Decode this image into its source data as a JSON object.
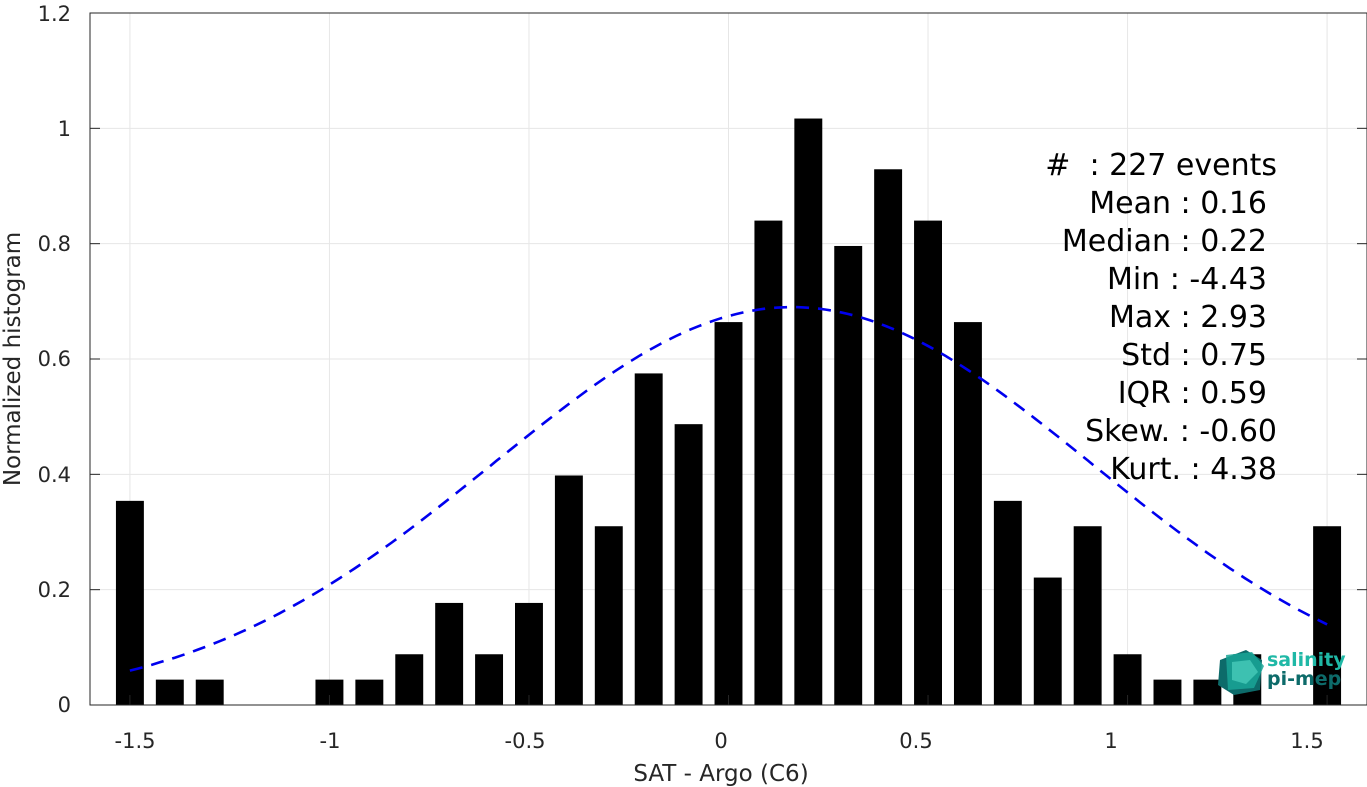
{
  "chart_data": {
    "type": "bar",
    "xlabel": "SAT - Argo (C6)",
    "ylabel": "Normalized histogram",
    "xlim": [
      -1.6,
      1.6
    ],
    "ylim": [
      0,
      1.2
    ],
    "grid": true,
    "x_ticks": [
      "-1.5",
      "-1",
      "-0.5",
      "0",
      "0.5",
      "1",
      "1.5"
    ],
    "x_tick_values": [
      -1.5,
      -1,
      -0.5,
      0,
      0.5,
      1,
      1.5
    ],
    "y_ticks": [
      "0",
      "0.2",
      "0.4",
      "0.6",
      "0.8",
      "1",
      "1.2"
    ],
    "y_tick_values": [
      0,
      0.2,
      0.4,
      0.6,
      0.8,
      1,
      1.2
    ],
    "bar_color": "#000000",
    "bar_width": 0.07,
    "series": [
      {
        "x": [
          -1.5,
          -1.4,
          -1.3,
          -1.2,
          -1.1,
          -1.0,
          -0.9,
          -0.8,
          -0.7,
          -0.6,
          -0.5,
          -0.4,
          -0.3,
          -0.2,
          -0.1,
          0.0,
          0.1,
          0.2,
          0.3,
          0.4,
          0.5,
          0.6,
          0.7,
          0.8,
          0.9,
          1.0,
          1.1,
          1.2,
          1.3,
          1.5
        ],
        "values": [
          0.354,
          0.044,
          0.044,
          0,
          0,
          0.044,
          0.044,
          0.088,
          0.177,
          0.088,
          0.177,
          0.398,
          0.31,
          0.575,
          0.487,
          0.664,
          0.84,
          1.017,
          0.796,
          0.929,
          0.84,
          0.664,
          0.354,
          0.221,
          0.31,
          0.088,
          0.044,
          0.044,
          0.088,
          0.31
        ]
      }
    ],
    "fit_curve": {
      "style": "dashed",
      "color": "#0000ee",
      "mean": 0.16,
      "std": 0.75,
      "peak": 0.69,
      "x_range": [
        -1.5,
        1.5
      ]
    }
  },
  "stats": {
    "line1": "#  : 227 events",
    "line2": "Mean : 0.16",
    "line3": "Median : 0.22",
    "line4": "Min : -4.43",
    "line5": "Max : 2.93",
    "line6": "Std : 0.75",
    "line7": "IQR : 0.59",
    "line8": "Skew. : -0.60",
    "line9": "Kurt. : 4.38"
  },
  "logo": {
    "line1": "salinity",
    "line2": "pi-mep"
  },
  "colors": {
    "axis": "#262626",
    "grid": "#e6e6e6",
    "logo_light": "#1fb8a6",
    "logo_dark": "#0d6b6a"
  }
}
